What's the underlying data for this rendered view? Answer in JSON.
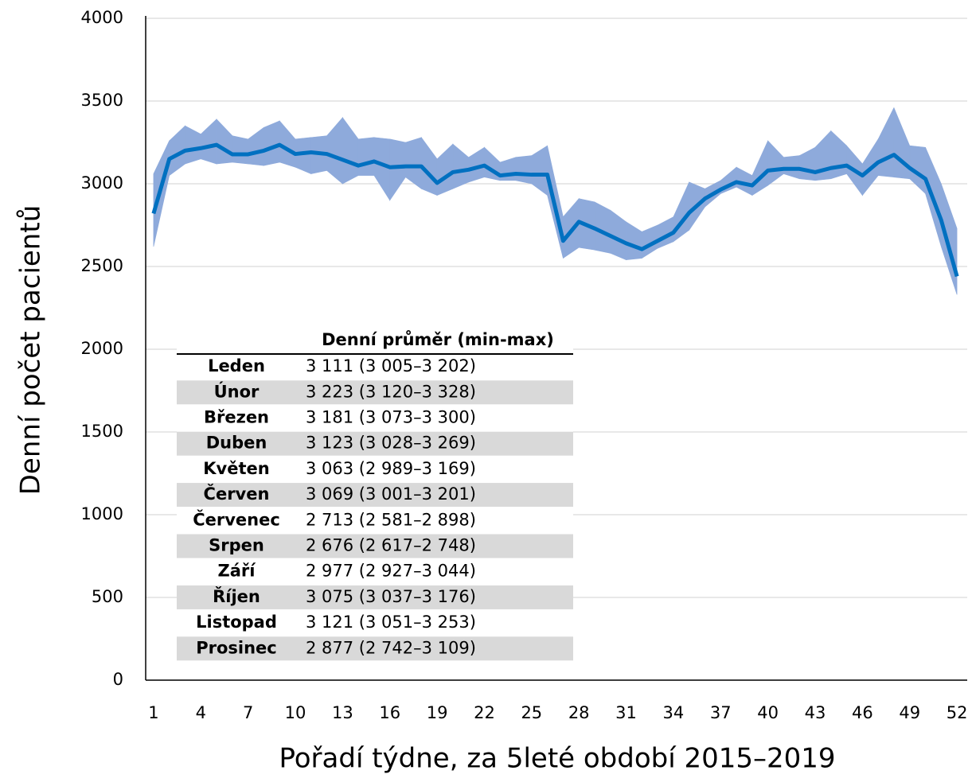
{
  "chart_data": {
    "type": "line",
    "x_label": "Pořadí týdne, za 5leté období 2015–2019",
    "y_label": "Denní počet pacientů",
    "x": [
      1,
      2,
      3,
      4,
      5,
      6,
      7,
      8,
      9,
      10,
      11,
      12,
      13,
      14,
      15,
      16,
      17,
      18,
      19,
      20,
      21,
      22,
      23,
      24,
      25,
      26,
      27,
      28,
      29,
      30,
      31,
      32,
      33,
      34,
      35,
      36,
      37,
      38,
      39,
      40,
      41,
      42,
      43,
      44,
      45,
      46,
      47,
      48,
      49,
      50,
      51,
      52
    ],
    "series": [
      {
        "color": "#0070c0",
        "values": [
          2820,
          3150,
          3200,
          3215,
          3235,
          3178,
          3178,
          3200,
          3235,
          3180,
          3190,
          3180,
          3145,
          3110,
          3135,
          3100,
          3105,
          3105,
          3005,
          3070,
          3085,
          3110,
          3050,
          3060,
          3055,
          3055,
          2655,
          2770,
          2730,
          2685,
          2640,
          2605,
          2655,
          2705,
          2825,
          2910,
          2965,
          3010,
          2990,
          3080,
          3090,
          3090,
          3070,
          3095,
          3110,
          3050,
          3130,
          3175,
          3095,
          3030,
          2780,
          2440
        ]
      }
    ],
    "band": {
      "color": "#8eaadb",
      "lower": [
        2620,
        3050,
        3120,
        3150,
        3120,
        3130,
        3120,
        3110,
        3130,
        3100,
        3060,
        3080,
        3000,
        3050,
        3050,
        2900,
        3040,
        2970,
        2930,
        2970,
        3010,
        3040,
        3020,
        3020,
        3000,
        2930,
        2550,
        2615,
        2600,
        2580,
        2540,
        2550,
        2610,
        2650,
        2720,
        2860,
        2940,
        2980,
        2930,
        2990,
        3060,
        3030,
        3020,
        3030,
        3060,
        2930,
        3050,
        3040,
        3030,
        2940,
        2620,
        2330
      ],
      "upper": [
        3060,
        3260,
        3350,
        3300,
        3390,
        3290,
        3270,
        3340,
        3380,
        3270,
        3280,
        3290,
        3400,
        3270,
        3280,
        3270,
        3250,
        3280,
        3150,
        3240,
        3160,
        3220,
        3130,
        3160,
        3170,
        3230,
        2800,
        2910,
        2890,
        2840,
        2770,
        2710,
        2750,
        2800,
        3010,
        2970,
        3020,
        3100,
        3050,
        3260,
        3160,
        3170,
        3220,
        3320,
        3230,
        3120,
        3270,
        3460,
        3230,
        3220,
        3000,
        2730
      ]
    },
    "xlim": [
      0.5,
      52.5
    ],
    "xticks": [
      1,
      4,
      7,
      10,
      13,
      16,
      19,
      22,
      25,
      28,
      31,
      34,
      37,
      40,
      43,
      46,
      49,
      52
    ],
    "ylim": [
      0,
      4000
    ],
    "yticks": [
      0,
      500,
      1000,
      1500,
      2000,
      2500,
      3000,
      3500,
      4000
    ],
    "grid": true,
    "table": {
      "header": "Denní průměr (min-max)",
      "rows": [
        [
          "Leden",
          "3 111 (3 005–3 202)"
        ],
        [
          "Únor",
          "3 223 (3 120–3 328)"
        ],
        [
          "Březen",
          "3 181 (3 073–3 300)"
        ],
        [
          "Duben",
          "3 123 (3 028–3 269)"
        ],
        [
          "Květen",
          "3 063 (2 989–3 169)"
        ],
        [
          "Červen",
          "3 069 (3 001–3 201)"
        ],
        [
          "Červenec",
          "2 713 (2 581–2 898)"
        ],
        [
          "Srpen",
          "2 676 (2 617–2 748)"
        ],
        [
          "Září",
          "2 977 (2 927–3 044)"
        ],
        [
          "Říjen",
          "3 075 (3 037–3 176)"
        ],
        [
          "Listopad",
          "3 121 (3 051–3 253)"
        ],
        [
          "Prosinec",
          "2 877 (2 742–3 109)"
        ]
      ]
    }
  }
}
